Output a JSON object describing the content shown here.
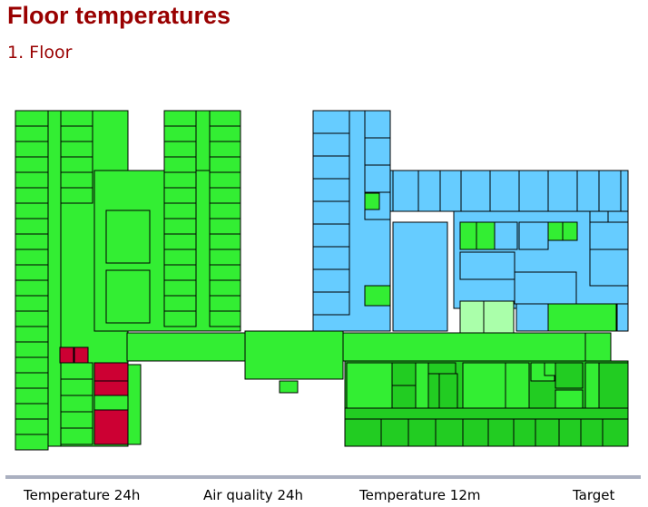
{
  "header": {
    "title": "Floor temperatures",
    "subtitle": "1. Floor"
  },
  "tabs": [
    "Temperature 24h",
    "Air quality 24h",
    "Temperature 12m",
    "Target"
  ]
}
